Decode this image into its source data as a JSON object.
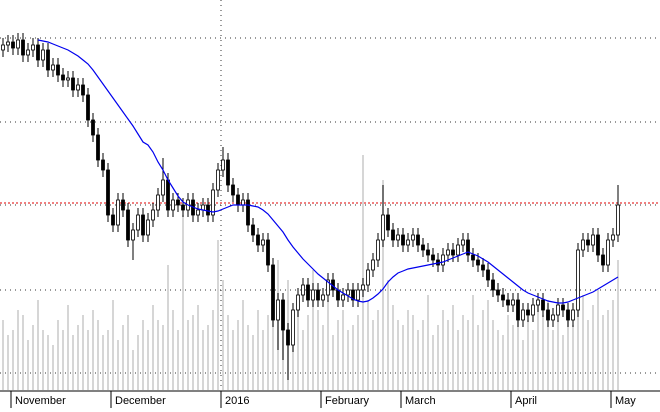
{
  "chart_data": {
    "type": "candlestick",
    "ylim": [
      0,
      390
    ],
    "yticks": [
      17,
      100,
      185,
      268,
      352
    ],
    "grid": true,
    "reference_line": 187,
    "reference_color": "#e00000",
    "ma_color": "#0000ee",
    "volume_color": "#c8c8c8",
    "x_labels": [
      {
        "label": "November",
        "index": 2
      },
      {
        "label": "December",
        "index": 22
      },
      {
        "label": "2016",
        "index": 44
      },
      {
        "label": "February",
        "index": 64
      },
      {
        "label": "March",
        "index": 80
      },
      {
        "label": "April",
        "index": 102
      },
      {
        "label": "May",
        "index": 122
      }
    ],
    "open": [
      340,
      345,
      348,
      342,
      350,
      335,
      340,
      345,
      330,
      340,
      320,
      325,
      315,
      310,
      312,
      300,
      305,
      295,
      270,
      255,
      230,
      220,
      175,
      165,
      190,
      180,
      150,
      160,
      175,
      155,
      170,
      180,
      195,
      210,
      180,
      190,
      185,
      180,
      190,
      175,
      180,
      185,
      175,
      200,
      220,
      230,
      205,
      195,
      185,
      190,
      165,
      155,
      145,
      150,
      125,
      70,
      90,
      60,
      45,
      80,
      95,
      105,
      90,
      100,
      90,
      95,
      110,
      100,
      90,
      95,
      100,
      90,
      100,
      105,
      120,
      130,
      150,
      175,
      160,
      150,
      155,
      145,
      150,
      155,
      145,
      140,
      135,
      130,
      125,
      135,
      140,
      135,
      145,
      150,
      135,
      130,
      125,
      120,
      110,
      100,
      95,
      90,
      85,
      90,
      70,
      80,
      75,
      85,
      90,
      80,
      70,
      75,
      85,
      80,
      70,
      80,
      140,
      150,
      145,
      155,
      135,
      125,
      150,
      155
    ],
    "high": [
      352,
      355,
      355,
      357,
      357,
      347,
      352,
      352,
      347,
      347,
      332,
      332,
      322,
      319,
      319,
      312,
      312,
      302,
      277,
      262,
      237,
      227,
      182,
      197,
      197,
      187,
      167,
      182,
      182,
      177,
      187,
      202,
      232,
      217,
      197,
      197,
      192,
      197,
      197,
      187,
      192,
      192,
      207,
      227,
      243,
      237,
      212,
      202,
      197,
      197,
      172,
      162,
      157,
      157,
      132,
      97,
      97,
      67,
      87,
      102,
      112,
      112,
      107,
      107,
      102,
      117,
      117,
      107,
      102,
      107,
      107,
      107,
      112,
      127,
      137,
      157,
      205,
      182,
      167,
      162,
      162,
      157,
      162,
      162,
      152,
      147,
      142,
      137,
      142,
      147,
      147,
      152,
      157,
      157,
      142,
      137,
      132,
      127,
      117,
      107,
      102,
      97,
      97,
      97,
      87,
      87,
      92,
      97,
      97,
      87,
      82,
      92,
      92,
      87,
      87,
      147,
      157,
      157,
      162,
      162,
      142,
      157,
      162,
      205
    ],
    "low": [
      333,
      338,
      335,
      335,
      328,
      328,
      333,
      323,
      323,
      313,
      313,
      308,
      303,
      303,
      293,
      293,
      288,
      263,
      248,
      223,
      213,
      168,
      158,
      158,
      173,
      143,
      130,
      153,
      148,
      148,
      163,
      173,
      188,
      173,
      173,
      178,
      173,
      173,
      168,
      168,
      173,
      168,
      168,
      193,
      213,
      198,
      188,
      178,
      178,
      158,
      148,
      138,
      138,
      118,
      63,
      40,
      30,
      10,
      38,
      73,
      88,
      83,
      83,
      83,
      83,
      88,
      93,
      83,
      83,
      88,
      83,
      83,
      93,
      98,
      113,
      123,
      143,
      153,
      143,
      143,
      138,
      138,
      143,
      138,
      133,
      128,
      123,
      118,
      118,
      128,
      128,
      128,
      138,
      128,
      123,
      118,
      113,
      103,
      93,
      88,
      83,
      78,
      78,
      63,
      63,
      68,
      68,
      78,
      73,
      63,
      63,
      68,
      73,
      63,
      63,
      73,
      133,
      138,
      138,
      128,
      118,
      118,
      143,
      148
    ],
    "close": [
      345,
      348,
      342,
      350,
      335,
      340,
      345,
      330,
      340,
      320,
      325,
      315,
      310,
      312,
      300,
      305,
      295,
      270,
      255,
      230,
      220,
      175,
      165,
      190,
      180,
      150,
      160,
      175,
      155,
      170,
      180,
      195,
      210,
      180,
      190,
      185,
      180,
      190,
      175,
      180,
      185,
      175,
      200,
      220,
      230,
      205,
      195,
      185,
      190,
      165,
      155,
      145,
      150,
      125,
      70,
      90,
      60,
      45,
      80,
      95,
      105,
      90,
      100,
      90,
      95,
      110,
      100,
      90,
      95,
      100,
      90,
      100,
      105,
      120,
      130,
      150,
      175,
      160,
      150,
      155,
      145,
      150,
      155,
      145,
      140,
      135,
      130,
      125,
      135,
      140,
      135,
      145,
      150,
      135,
      130,
      125,
      120,
      110,
      100,
      95,
      90,
      85,
      90,
      70,
      80,
      75,
      85,
      90,
      80,
      70,
      75,
      85,
      80,
      70,
      80,
      140,
      150,
      145,
      155,
      135,
      125,
      150,
      155,
      185
    ],
    "ma": [
      null,
      null,
      null,
      null,
      null,
      null,
      null,
      350,
      349,
      348,
      346,
      344,
      342,
      340,
      337,
      334,
      330,
      326,
      320,
      313,
      306,
      299,
      292,
      285,
      278,
      271,
      264,
      256,
      248,
      245,
      238,
      228,
      220,
      210,
      202,
      194,
      188,
      185,
      183,
      181,
      180,
      179,
      178,
      179,
      181,
      183,
      185,
      185,
      185,
      185,
      184,
      183,
      180,
      176,
      170,
      164,
      158,
      150,
      143,
      137,
      131,
      126,
      121,
      116,
      112,
      108,
      104,
      100,
      97,
      94,
      91,
      89,
      88,
      89,
      92,
      96,
      101,
      108,
      113,
      117,
      119,
      121,
      122,
      123,
      124,
      125,
      126,
      127,
      128,
      130,
      132,
      134,
      136,
      138,
      136,
      134,
      131,
      128,
      124,
      120,
      116,
      112,
      108,
      104,
      100,
      97,
      95,
      93,
      91,
      89,
      88,
      87,
      87,
      88,
      90,
      92,
      94,
      96,
      98,
      101,
      104,
      107,
      110,
      113
    ],
    "volume": [
      70,
      55,
      60,
      80,
      75,
      50,
      65,
      90,
      60,
      55,
      45,
      70,
      60,
      85,
      55,
      65,
      75,
      60,
      80,
      70,
      55,
      60,
      90,
      50,
      65,
      75,
      40,
      55,
      70,
      60,
      85,
      70,
      65,
      125,
      80,
      60,
      175,
      70,
      75,
      85,
      60,
      65,
      80,
      150,
      110,
      75,
      60,
      70,
      90,
      65,
      55,
      80,
      60,
      75,
      100,
      130,
      90,
      110,
      70,
      85,
      60,
      75,
      120,
      80,
      65,
      90,
      55,
      70,
      80,
      60,
      65,
      75,
      235,
      90,
      70,
      80,
      210,
      110,
      85,
      70,
      65,
      80,
      75,
      60,
      70,
      95,
      55,
      65,
      80,
      70,
      85,
      60,
      75,
      70,
      95,
      65,
      80,
      90,
      70,
      60,
      55,
      75,
      65,
      80,
      50,
      70,
      60,
      85,
      75,
      90,
      60,
      70,
      55,
      80,
      65,
      110,
      95,
      70,
      85,
      100,
      75,
      80,
      90,
      130
    ]
  }
}
